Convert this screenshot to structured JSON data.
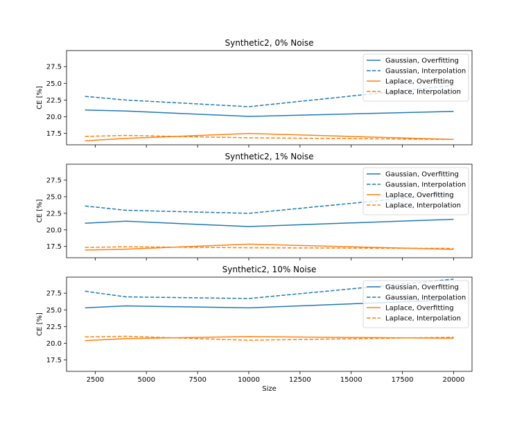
{
  "chart_data": [
    {
      "type": "line",
      "title": "Synthetic2, 0% Noise",
      "xlabel": "",
      "ylabel": "CE [%]",
      "xlim": [
        1100,
        20900
      ],
      "ylim": [
        15.8,
        29.9
      ],
      "xticks": [
        2500,
        5000,
        7500,
        10000,
        12500,
        15000,
        17500,
        20000
      ],
      "xtick_labels_visible": false,
      "yticks": [
        17.5,
        20.0,
        22.5,
        25.0,
        27.5
      ],
      "ytick_labels": [
        "17.5",
        "20.0",
        "22.5",
        "25.0",
        "27.5"
      ],
      "legend_position": "top-right",
      "x": [
        2000,
        4000,
        10000,
        20000
      ],
      "series": [
        {
          "name": "Gaussian, Overfitting",
          "color": "#1f77b4",
          "dash": "solid",
          "values": [
            21.0,
            20.85,
            20.05,
            20.8
          ]
        },
        {
          "name": "Gaussian, Interpolation",
          "color": "#1f77b4",
          "dash": "dashed",
          "values": [
            23.05,
            22.5,
            21.5,
            24.7
          ]
        },
        {
          "name": "Laplace, Overfitting",
          "color": "#ff7f0e",
          "dash": "solid",
          "values": [
            16.4,
            16.75,
            17.5,
            16.6
          ]
        },
        {
          "name": "Laplace, Interpolation",
          "color": "#ff7f0e",
          "dash": "dashed",
          "values": [
            17.05,
            17.2,
            16.85,
            16.6
          ]
        }
      ]
    },
    {
      "type": "line",
      "title": "Synthetic2, 1% Noise",
      "xlabel": "",
      "ylabel": "CE [%]",
      "xlim": [
        1100,
        20900
      ],
      "ylim": [
        15.8,
        29.9
      ],
      "xticks": [
        2500,
        5000,
        7500,
        10000,
        12500,
        15000,
        17500,
        20000
      ],
      "xtick_labels_visible": false,
      "yticks": [
        17.5,
        20.0,
        22.5,
        25.0,
        27.5
      ],
      "ytick_labels": [
        "17.5",
        "20.0",
        "22.5",
        "25.0",
        "27.5"
      ],
      "legend_position": "top-right",
      "x": [
        2000,
        4000,
        10000,
        20000
      ],
      "series": [
        {
          "name": "Gaussian, Overfitting",
          "color": "#1f77b4",
          "dash": "solid",
          "values": [
            21.0,
            21.3,
            20.5,
            21.6
          ]
        },
        {
          "name": "Gaussian, Interpolation",
          "color": "#1f77b4",
          "dash": "dashed",
          "values": [
            23.6,
            22.95,
            22.5,
            25.5
          ]
        },
        {
          "name": "Laplace, Overfitting",
          "color": "#ff7f0e",
          "dash": "solid",
          "values": [
            16.95,
            17.1,
            17.85,
            17.05
          ]
        },
        {
          "name": "Laplace, Interpolation",
          "color": "#ff7f0e",
          "dash": "dashed",
          "values": [
            17.35,
            17.45,
            17.3,
            17.2
          ]
        }
      ]
    },
    {
      "type": "line",
      "title": "Synthetic2, 10% Noise",
      "xlabel": "Size",
      "ylabel": "CE [%]",
      "xlim": [
        1100,
        20900
      ],
      "ylim": [
        15.8,
        29.9
      ],
      "xticks": [
        2500,
        5000,
        7500,
        10000,
        12500,
        15000,
        17500,
        20000
      ],
      "xtick_labels": [
        "2500",
        "5000",
        "7500",
        "10000",
        "12500",
        "15000",
        "17500",
        "20000"
      ],
      "xtick_labels_visible": true,
      "yticks": [
        17.5,
        20.0,
        22.5,
        25.0,
        27.5
      ],
      "ytick_labels": [
        "17.5",
        "20.0",
        "22.5",
        "25.0",
        "27.5"
      ],
      "legend_position": "top-right",
      "x": [
        2000,
        4000,
        10000,
        20000
      ],
      "series": [
        {
          "name": "Gaussian, Overfitting",
          "color": "#1f77b4",
          "dash": "solid",
          "values": [
            25.3,
            25.6,
            25.3,
            26.5
          ]
        },
        {
          "name": "Gaussian, Interpolation",
          "color": "#1f77b4",
          "dash": "dashed",
          "values": [
            27.8,
            26.95,
            26.7,
            29.6
          ]
        },
        {
          "name": "Laplace, Overfitting",
          "color": "#ff7f0e",
          "dash": "solid",
          "values": [
            20.4,
            20.7,
            21.0,
            20.75
          ]
        },
        {
          "name": "Laplace, Interpolation",
          "color": "#ff7f0e",
          "dash": "dashed",
          "values": [
            20.95,
            21.05,
            20.45,
            20.9
          ]
        }
      ]
    }
  ]
}
